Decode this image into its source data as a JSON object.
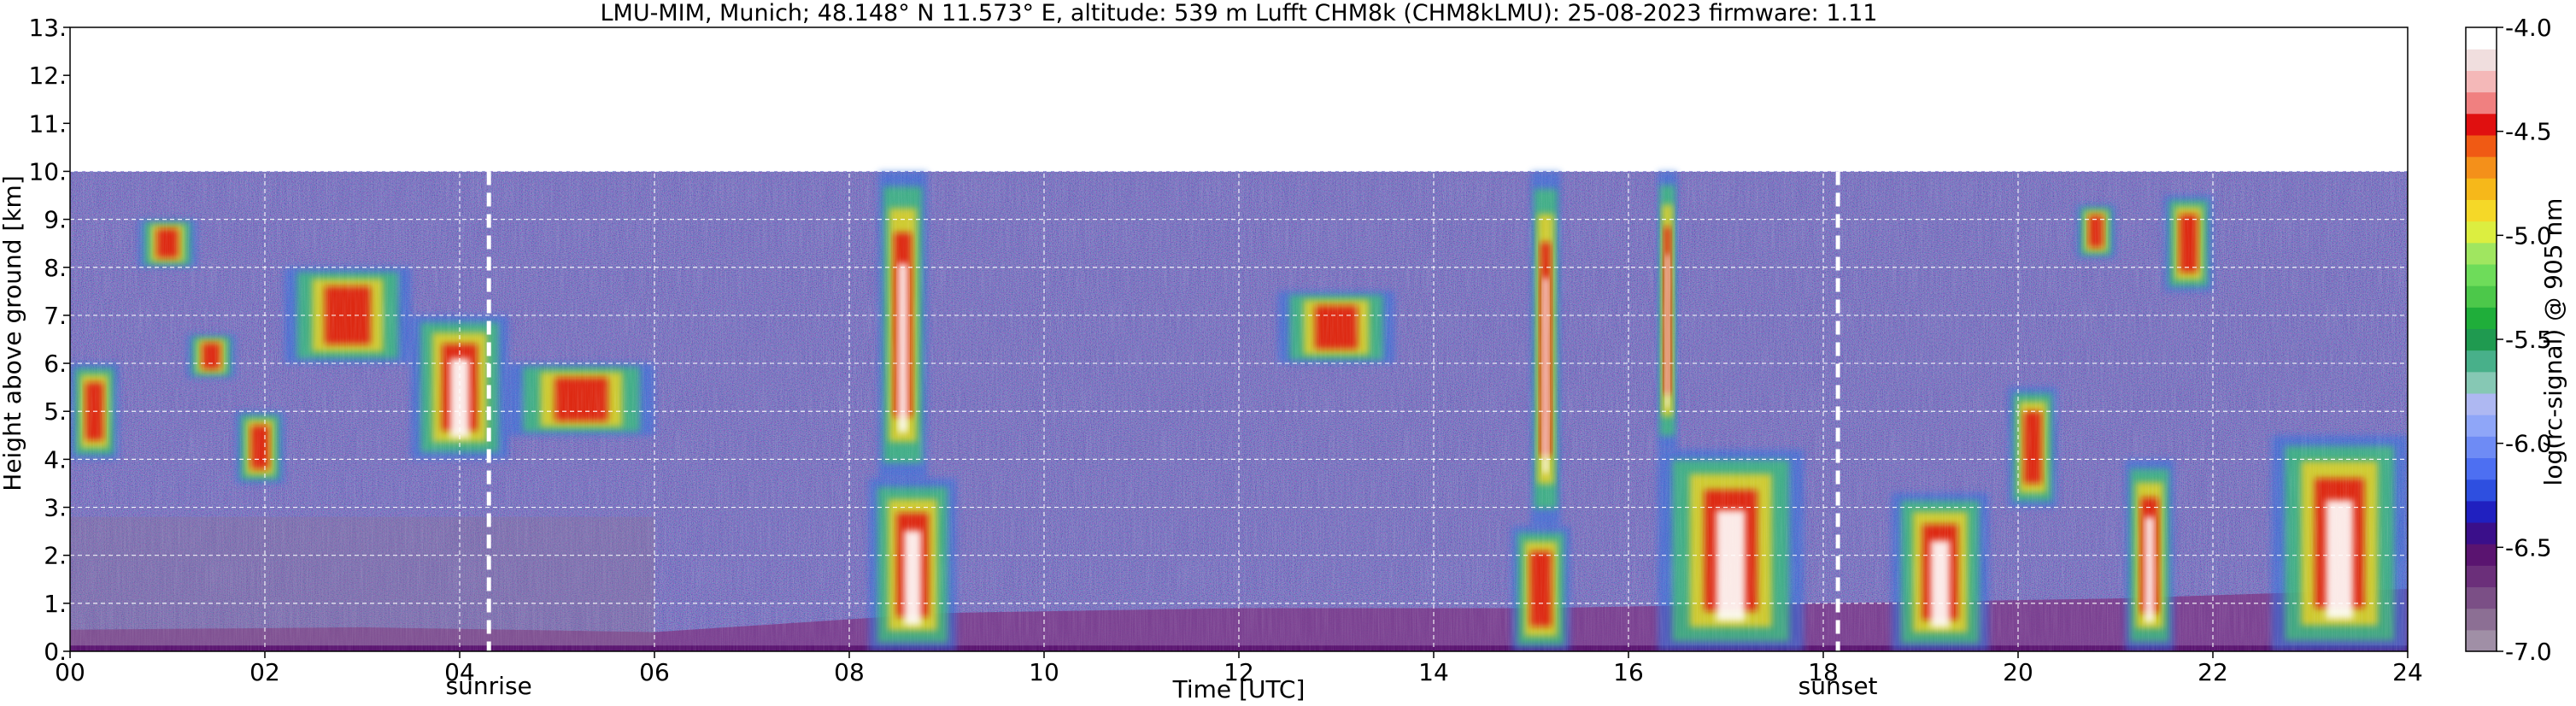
{
  "chart_data": {
    "type": "heatmap",
    "title": "LMU-MIM, Munich; 48.148° N 11.573° E, altitude: 539 m    Lufft CHM8k (CHM8kLMU): 25-08-2023    firmware: 1.11",
    "xlabel": "Time [UTC]",
    "ylabel": "Height above ground [km]",
    "xlim": [
      0,
      24
    ],
    "ylim": [
      0,
      13
    ],
    "x_tick_labels": [
      "00",
      "02",
      "04",
      "06",
      "08",
      "10",
      "12",
      "14",
      "16",
      "18",
      "20",
      "22",
      "24"
    ],
    "y_tick_labels": [
      "0.",
      "1.",
      "2.",
      "3.",
      "4.",
      "5.",
      "6.",
      "7.",
      "8.",
      "9.",
      "10.",
      "11.",
      "12.",
      "13."
    ],
    "grid": true,
    "data_top_km": 10,
    "colorbar": {
      "label": "log(rc-signal) @ 905 nm",
      "range": [
        -7.0,
        -4.0
      ],
      "tick_labels": [
        "-4.0",
        "-4.5",
        "-5.0",
        "-5.5",
        "-6.0",
        "-6.5",
        "-7.0"
      ],
      "colors": [
        "#a08fa6",
        "#8c6f94",
        "#7b4f86",
        "#6b2f7a",
        "#5a1470",
        "#3a0f8a",
        "#2020c0",
        "#2e4fe0",
        "#4d6ff2",
        "#6e8bf5",
        "#8fa6f8",
        "#aeb8f2",
        "#86c8b4",
        "#48b08a",
        "#1f9a50",
        "#1fae3a",
        "#4cc84a",
        "#6edc5a",
        "#a0e660",
        "#dcee40",
        "#f5d828",
        "#f6b81a",
        "#f4901a",
        "#f05a14",
        "#e01010",
        "#f08080",
        "#f4b8b8",
        "#f0dede",
        "#ffffff"
      ]
    },
    "events": [
      {
        "name": "sunrise",
        "time_utc": 4.3
      },
      {
        "name": "sunset",
        "time_utc": 18.15
      }
    ],
    "boundary_layer_km": [
      {
        "time": 0,
        "height": 0.45
      },
      {
        "time": 3,
        "height": 0.5
      },
      {
        "time": 6,
        "height": 0.4
      },
      {
        "time": 9,
        "height": 0.8
      },
      {
        "time": 12,
        "height": 0.9
      },
      {
        "time": 15,
        "height": 0.9
      },
      {
        "time": 18,
        "height": 1.0
      },
      {
        "time": 21,
        "height": 1.1
      },
      {
        "time": 24,
        "height": 1.3
      }
    ],
    "cloud_layers": [
      {
        "t0": 0.0,
        "t1": 0.5,
        "h0": 4.0,
        "h1": 6.0
      },
      {
        "t0": 0.7,
        "t1": 1.3,
        "h0": 8.0,
        "h1": 9.0
      },
      {
        "t0": 1.2,
        "t1": 1.7,
        "h0": 5.7,
        "h1": 6.6
      },
      {
        "t0": 1.7,
        "t1": 2.2,
        "h0": 3.5,
        "h1": 5.0
      },
      {
        "t0": 2.2,
        "t1": 3.5,
        "h0": 6.0,
        "h1": 8.0
      },
      {
        "t0": 3.5,
        "t1": 4.5,
        "h0": 4.0,
        "h1": 7.0
      },
      {
        "t0": 4.5,
        "t1": 6.0,
        "h0": 4.5,
        "h1": 6.0
      },
      {
        "t0": 8.2,
        "t1": 9.1,
        "h0": 0.0,
        "h1": 3.6
      },
      {
        "t0": 8.3,
        "t1": 8.8,
        "h0": 3.6,
        "h1": 10.0
      },
      {
        "t0": 12.4,
        "t1": 13.6,
        "h0": 6.0,
        "h1": 7.5
      },
      {
        "t0": 14.8,
        "t1": 15.4,
        "h0": 0.0,
        "h1": 2.6
      },
      {
        "t0": 15.0,
        "t1": 15.3,
        "h0": 2.6,
        "h1": 10.0
      },
      {
        "t0": 16.3,
        "t1": 17.8,
        "h0": 0.0,
        "h1": 4.2
      },
      {
        "t0": 16.3,
        "t1": 16.5,
        "h0": 4.2,
        "h1": 10.0
      },
      {
        "t0": 18.7,
        "t1": 19.7,
        "h0": 0.0,
        "h1": 3.3
      },
      {
        "t0": 19.9,
        "t1": 20.4,
        "h0": 3.0,
        "h1": 5.5
      },
      {
        "t0": 20.6,
        "t1": 21.0,
        "h0": 8.2,
        "h1": 9.3
      },
      {
        "t0": 21.1,
        "t1": 21.6,
        "h0": 0.0,
        "h1": 4.0
      },
      {
        "t0": 21.5,
        "t1": 22.0,
        "h0": 7.5,
        "h1": 9.5
      },
      {
        "t0": 22.6,
        "t1": 24.0,
        "h0": 0.0,
        "h1": 4.5
      }
    ]
  }
}
